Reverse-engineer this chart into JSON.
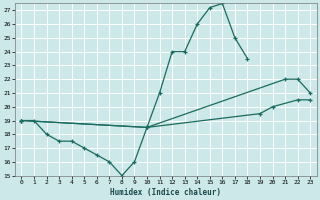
{
  "xlabel": "Humidex (Indice chaleur)",
  "xlim": [
    -0.5,
    23.5
  ],
  "ylim": [
    15,
    27.5
  ],
  "yticks": [
    15,
    16,
    17,
    18,
    19,
    20,
    21,
    22,
    23,
    24,
    25,
    26,
    27
  ],
  "xticks": [
    0,
    1,
    2,
    3,
    4,
    5,
    6,
    7,
    8,
    9,
    10,
    11,
    12,
    13,
    14,
    15,
    16,
    17,
    18,
    19,
    20,
    21,
    22,
    23
  ],
  "bg_color": "#cce8e8",
  "grid_color": "#ffffff",
  "line_color": "#1a6b60",
  "line1_x": [
    0,
    1,
    2,
    3,
    4,
    5,
    6,
    7,
    8,
    9,
    10,
    11,
    12,
    13,
    14,
    15,
    16,
    17,
    18
  ],
  "line1_y": [
    19.0,
    19.0,
    18.0,
    17.5,
    17.5,
    17.0,
    16.5,
    16.0,
    15.0,
    16.0,
    18.5,
    21.0,
    24.0,
    24.0,
    26.0,
    27.2,
    27.5,
    25.0,
    23.5
  ],
  "line2_x": [
    0,
    10,
    21,
    22,
    23
  ],
  "line2_y": [
    19.0,
    18.5,
    22.0,
    22.0,
    21.0
  ],
  "line3_x": [
    0,
    10,
    19,
    20,
    22,
    23
  ],
  "line3_y": [
    19.0,
    18.5,
    19.5,
    20.0,
    20.5,
    20.5
  ]
}
